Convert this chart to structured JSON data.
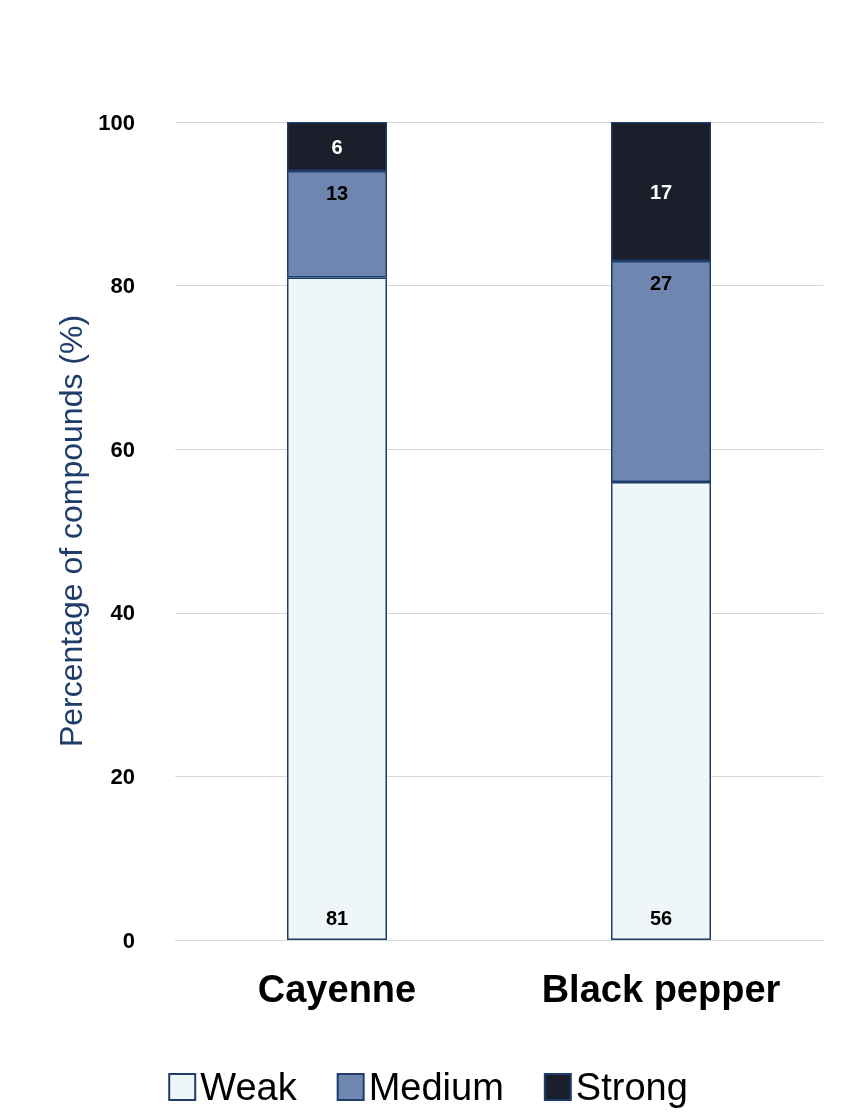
{
  "chart_data": {
    "type": "bar",
    "stacked": true,
    "ylabel": "Percentage of compounds (%)",
    "categories": [
      "Cayenne",
      "Black pepper"
    ],
    "series": [
      {
        "name": "Weak",
        "color": "#eef6f8",
        "values": [
          81,
          56
        ]
      },
      {
        "name": "Medium",
        "color": "#6f86b0",
        "values": [
          13,
          27
        ]
      },
      {
        "name": "Strong",
        "color": "#1a1f2b",
        "values": [
          6,
          17
        ]
      }
    ],
    "ylim": [
      0,
      100
    ],
    "yticks": [
      0,
      20,
      40,
      60,
      80,
      100
    ],
    "grid": "y",
    "legend": "bottom",
    "data_labels": true
  }
}
